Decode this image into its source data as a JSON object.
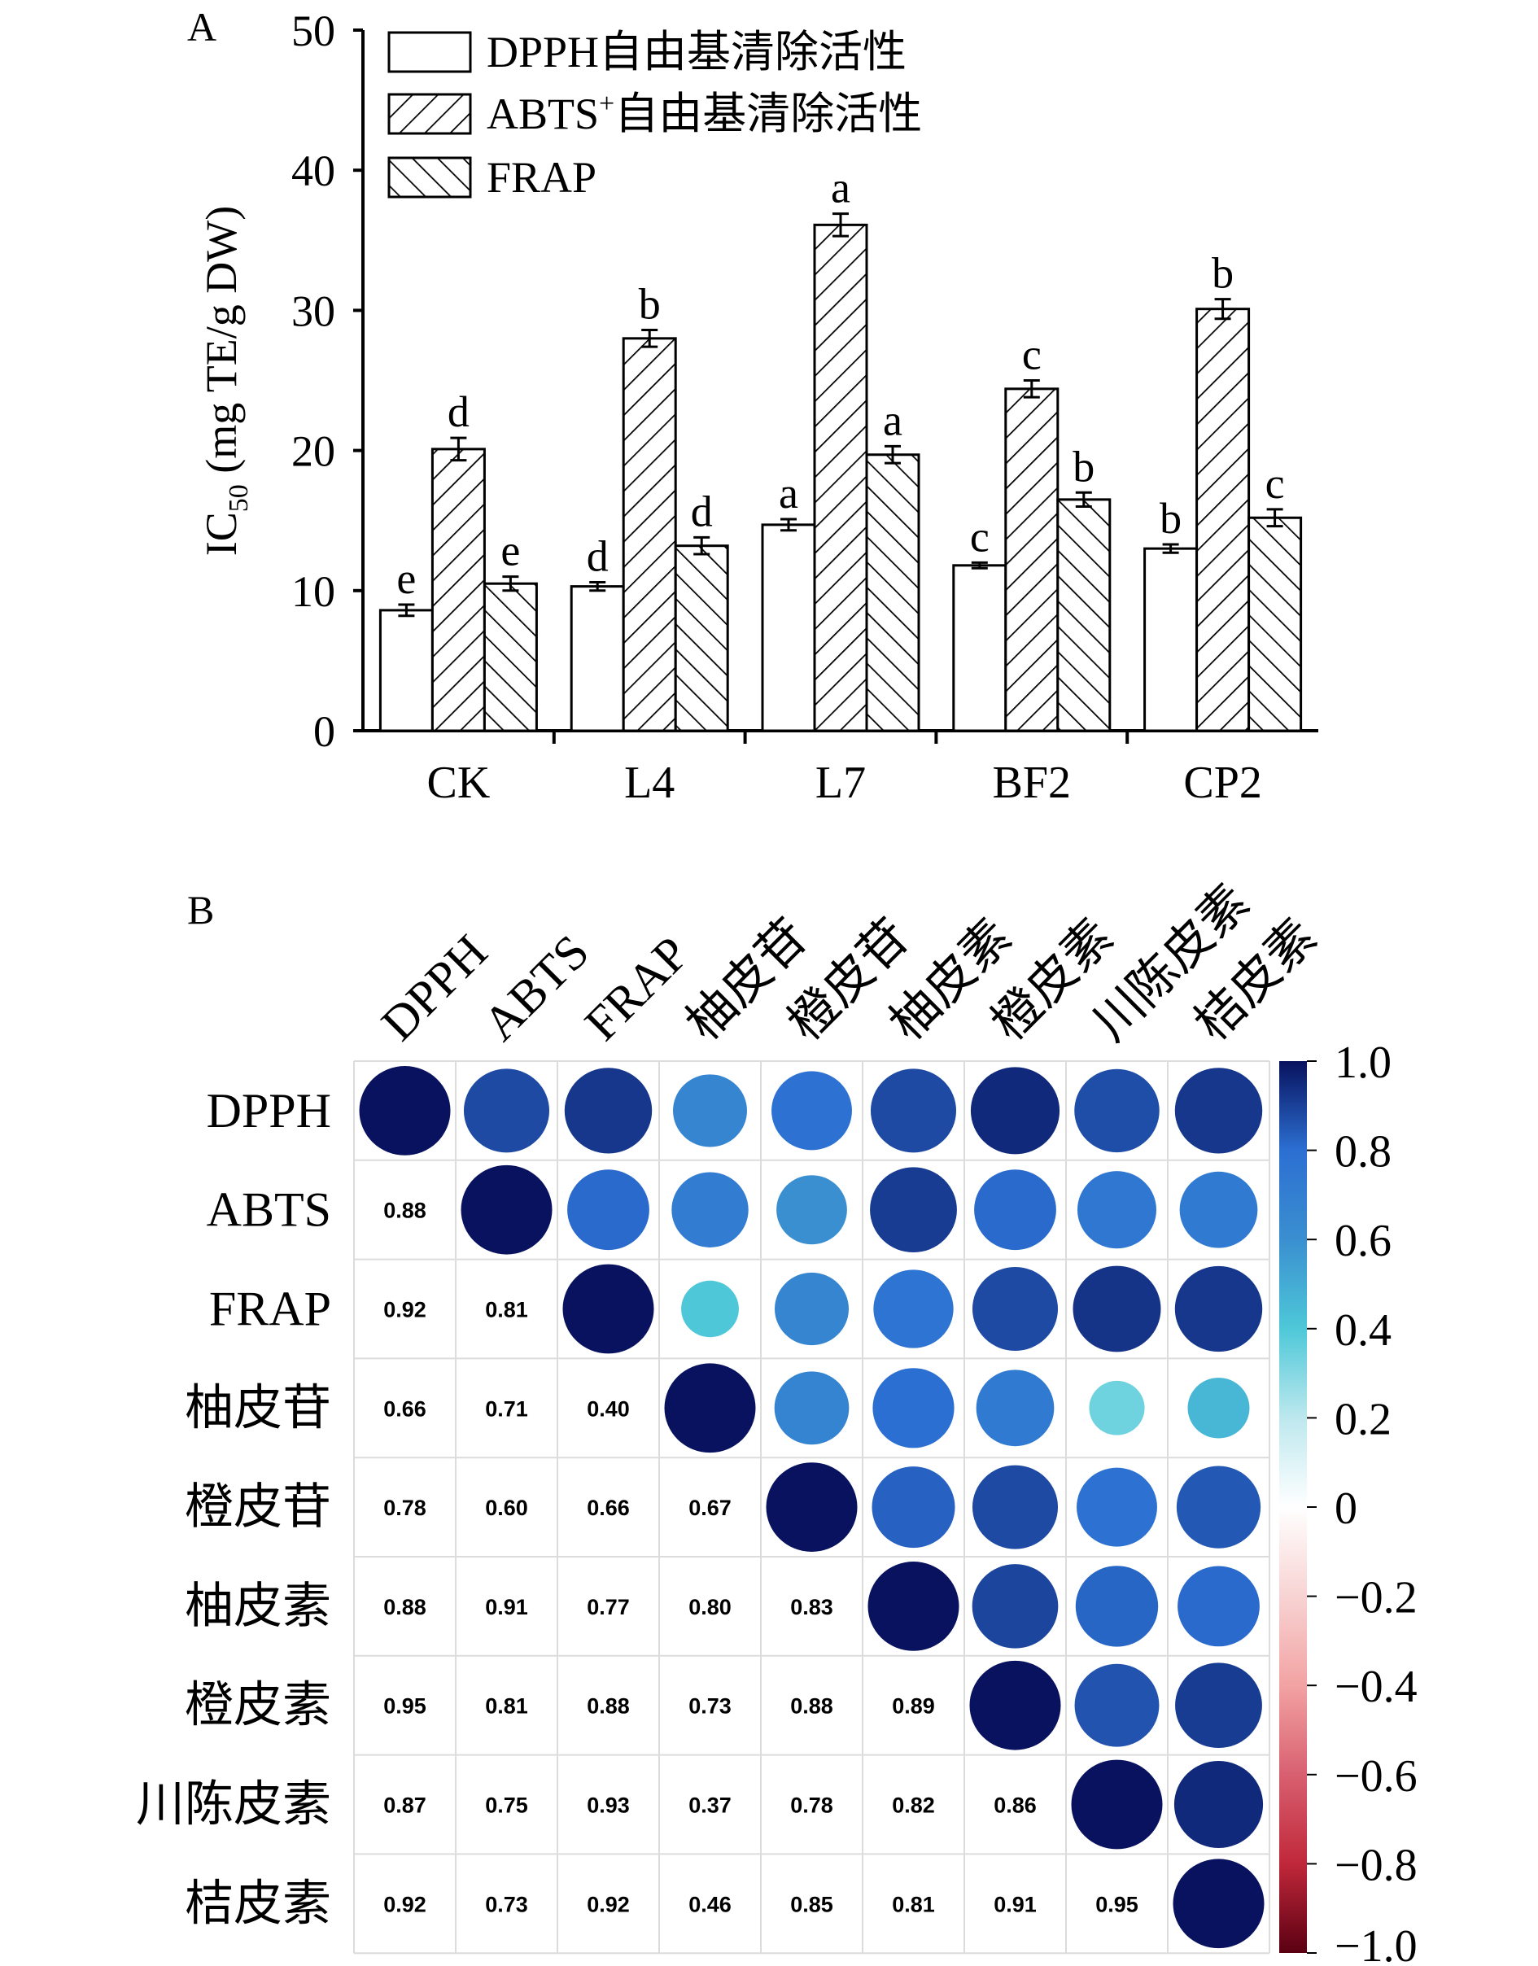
{
  "chart_data": [
    {
      "type": "bar",
      "panel": "A",
      "ylabel": "IC50 (mg TE/g DW)",
      "ylabel_main": "IC",
      "ylabel_sub": "50",
      "ylabel_rest": " (mg TE/g DW)",
      "ylim": [
        0,
        50
      ],
      "yticks": [
        "0",
        "10",
        "20",
        "30",
        "40",
        "50"
      ],
      "legend_position": "top-left",
      "categories": [
        "CK",
        "L4",
        "L7",
        "BF2",
        "CP2"
      ],
      "series": [
        {
          "name": "DPPH自由基清除活性",
          "pattern": "none",
          "values": [
            8.6,
            10.3,
            14.7,
            11.8,
            13.0
          ],
          "errors": [
            0.4,
            0.3,
            0.4,
            0.2,
            0.3
          ],
          "letters": [
            "e",
            "d",
            "a",
            "c",
            "b"
          ]
        },
        {
          "name": "ABTS+自由基清除活性",
          "name_main": "ABTS",
          "name_sup": "+",
          "name_rest": "自由基清除活性",
          "pattern": "diagonal-up",
          "values": [
            20.1,
            28.0,
            36.1,
            24.4,
            30.1
          ],
          "errors": [
            0.8,
            0.6,
            0.8,
            0.6,
            0.7
          ],
          "letters": [
            "d",
            "b",
            "a",
            "c",
            "b"
          ]
        },
        {
          "name": "FRAP",
          "pattern": "diagonal-down",
          "values": [
            10.5,
            13.2,
            19.7,
            16.5,
            15.2
          ],
          "errors": [
            0.5,
            0.6,
            0.6,
            0.5,
            0.6
          ],
          "letters": [
            "e",
            "d",
            "a",
            "b",
            "c"
          ]
        }
      ]
    },
    {
      "type": "heatmap",
      "panel": "B",
      "labels": [
        "DPPH",
        "ABTS",
        "FRAP",
        "柚皮苷",
        "橙皮苷",
        "柚皮素",
        "橙皮素",
        "川陈皮素",
        "桔皮素"
      ],
      "matrix": [
        [
          1.0,
          0.88,
          0.92,
          0.66,
          0.78,
          0.88,
          0.95,
          0.87,
          0.92
        ],
        [
          0.88,
          1.0,
          0.81,
          0.71,
          0.6,
          0.91,
          0.81,
          0.75,
          0.73
        ],
        [
          0.92,
          0.81,
          1.0,
          0.4,
          0.66,
          0.77,
          0.88,
          0.93,
          0.92
        ],
        [
          0.66,
          0.71,
          0.4,
          1.0,
          0.67,
          0.8,
          0.73,
          0.37,
          0.46
        ],
        [
          0.78,
          0.6,
          0.66,
          0.67,
          1.0,
          0.83,
          0.88,
          0.78,
          0.85
        ],
        [
          0.88,
          0.91,
          0.77,
          0.8,
          0.83,
          1.0,
          0.89,
          0.82,
          0.81
        ],
        [
          0.95,
          0.81,
          0.88,
          0.73,
          0.88,
          0.89,
          1.0,
          0.86,
          0.91
        ],
        [
          0.87,
          0.75,
          0.93,
          0.37,
          0.78,
          0.82,
          0.86,
          1.0,
          0.95
        ],
        [
          0.92,
          0.73,
          0.92,
          0.46,
          0.85,
          0.81,
          0.91,
          0.95,
          1.0
        ]
      ],
      "lower_triangle_display": "numbers",
      "upper_triangle_display": "circles",
      "colorbar": {
        "range": [
          -1.0,
          1.0
        ],
        "ticks": [
          "1.0",
          "0.8",
          "0.6",
          "0.4",
          "0.2",
          "0",
          "−0.2",
          "−0.4",
          "−0.6",
          "−0.8",
          "−1.0"
        ],
        "colors": {
          "pos_strong": "#08125e",
          "pos_mid": "#2c6fd2",
          "pos_light": "#4ec8d8",
          "zero": "#ffffff",
          "neg_light": "#f2a3a3",
          "neg_mid": "#c0283a",
          "neg_strong": "#5a0012"
        }
      }
    }
  ]
}
